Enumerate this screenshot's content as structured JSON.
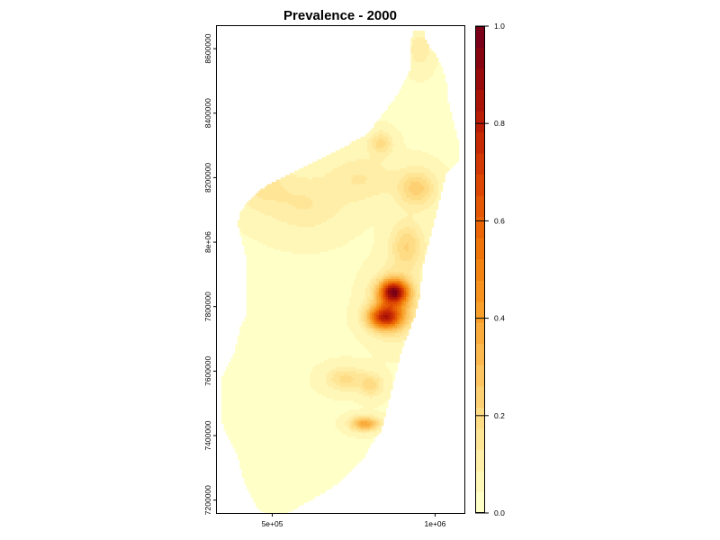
{
  "chart_data": {
    "type": "heatmap",
    "title": "Prevalence - 2000",
    "xlabel": "",
    "ylabel": "",
    "xlim": [
      330000,
      1090000
    ],
    "ylim": [
      7160000,
      8670000
    ],
    "x_ticks": [
      {
        "value": 500000,
        "label": "5e+05"
      },
      {
        "value": 1000000,
        "label": "1e+06"
      }
    ],
    "y_ticks": [
      {
        "value": 7200000,
        "label": "7200000"
      },
      {
        "value": 7400000,
        "label": "7400000"
      },
      {
        "value": 7600000,
        "label": "7600000"
      },
      {
        "value": 7800000,
        "label": "7800000"
      },
      {
        "value": 8000000,
        "label": "8e+06"
      },
      {
        "value": 8200000,
        "label": "8200000"
      },
      {
        "value": 8400000,
        "label": "8400000"
      },
      {
        "value": 8600000,
        "label": "8600000"
      }
    ],
    "colorbar": {
      "min": 0.0,
      "max": 1.0,
      "ticks": [
        {
          "value": 0.0,
          "label": "0.0"
        },
        {
          "value": 0.2,
          "label": "0.2"
        },
        {
          "value": 0.4,
          "label": "0.4"
        },
        {
          "value": 0.6,
          "label": "0.6"
        },
        {
          "value": 0.8,
          "label": "0.8"
        },
        {
          "value": 1.0,
          "label": "1.0"
        }
      ],
      "colors": [
        "#ffffc8",
        "#fff7b8",
        "#ffeea8",
        "#ffe596",
        "#fedc85",
        "#fdd073",
        "#fcc561",
        "#fbb84e",
        "#f9ac3c",
        "#f79f2a",
        "#f5911c",
        "#f28310",
        "#ee740a",
        "#e96506",
        "#e35604",
        "#db4703",
        "#d13803",
        "#c52a04",
        "#b81d05",
        "#a91306",
        "#980b0a",
        "#870510",
        "#7a0018"
      ],
      "position": "right"
    },
    "raster_values": {
      "background": 0.04,
      "island_outline_y_x_ranges": [
        {
          "y": 8660000,
          "x_min": 930000,
          "x_max": 960000
        },
        {
          "y": 8620000,
          "x_min": 920000,
          "x_max": 970000
        },
        {
          "y": 8580000,
          "x_min": 920000,
          "x_max": 1000000
        },
        {
          "y": 8540000,
          "x_min": 920000,
          "x_max": 1020000
        },
        {
          "y": 8500000,
          "x_min": 900000,
          "x_max": 1030000
        },
        {
          "y": 8460000,
          "x_min": 880000,
          "x_max": 1030000
        },
        {
          "y": 8420000,
          "x_min": 850000,
          "x_max": 1040000
        },
        {
          "y": 8380000,
          "x_min": 820000,
          "x_max": 1050000
        },
        {
          "y": 8340000,
          "x_min": 790000,
          "x_max": 1060000
        },
        {
          "y": 8300000,
          "x_min": 720000,
          "x_max": 1070000
        },
        {
          "y": 8260000,
          "x_min": 640000,
          "x_max": 1070000
        },
        {
          "y": 8220000,
          "x_min": 560000,
          "x_max": 1030000
        },
        {
          "y": 8180000,
          "x_min": 480000,
          "x_max": 1020000
        },
        {
          "y": 8140000,
          "x_min": 430000,
          "x_max": 1010000
        },
        {
          "y": 8100000,
          "x_min": 400000,
          "x_max": 1000000
        },
        {
          "y": 8060000,
          "x_min": 390000,
          "x_max": 990000
        },
        {
          "y": 8020000,
          "x_min": 400000,
          "x_max": 980000
        },
        {
          "y": 7980000,
          "x_min": 410000,
          "x_max": 970000
        },
        {
          "y": 7940000,
          "x_min": 420000,
          "x_max": 960000
        },
        {
          "y": 7900000,
          "x_min": 420000,
          "x_max": 955000
        },
        {
          "y": 7860000,
          "x_min": 420000,
          "x_max": 950000
        },
        {
          "y": 7820000,
          "x_min": 420000,
          "x_max": 945000
        },
        {
          "y": 7780000,
          "x_min": 420000,
          "x_max": 935000
        },
        {
          "y": 7740000,
          "x_min": 400000,
          "x_max": 920000
        },
        {
          "y": 7700000,
          "x_min": 390000,
          "x_max": 905000
        },
        {
          "y": 7660000,
          "x_min": 380000,
          "x_max": 890000
        },
        {
          "y": 7620000,
          "x_min": 360000,
          "x_max": 880000
        },
        {
          "y": 7580000,
          "x_min": 340000,
          "x_max": 870000
        },
        {
          "y": 7540000,
          "x_min": 340000,
          "x_max": 860000
        },
        {
          "y": 7500000,
          "x_min": 340000,
          "x_max": 850000
        },
        {
          "y": 7460000,
          "x_min": 340000,
          "x_max": 840000
        },
        {
          "y": 7420000,
          "x_min": 350000,
          "x_max": 830000
        },
        {
          "y": 7380000,
          "x_min": 370000,
          "x_max": 800000
        },
        {
          "y": 7340000,
          "x_min": 390000,
          "x_max": 780000
        },
        {
          "y": 7300000,
          "x_min": 400000,
          "x_max": 740000
        },
        {
          "y": 7260000,
          "x_min": 410000,
          "x_max": 700000
        },
        {
          "y": 7220000,
          "x_min": 430000,
          "x_max": 640000
        },
        {
          "y": 7180000,
          "x_min": 450000,
          "x_max": 570000
        },
        {
          "y": 7160000,
          "x_min": 480000,
          "x_max": 530000
        }
      ],
      "hotspots": [
        {
          "x": 870000,
          "y": 7850000,
          "sx": 30000,
          "sy": 25000,
          "value": 0.7
        },
        {
          "x": 840000,
          "y": 7770000,
          "sx": 35000,
          "sy": 25000,
          "value": 0.6
        },
        {
          "x": 870000,
          "y": 7810000,
          "sx": 45000,
          "sy": 60000,
          "value": 0.3
        },
        {
          "x": 940000,
          "y": 8170000,
          "sx": 40000,
          "sy": 40000,
          "value": 0.2
        },
        {
          "x": 910000,
          "y": 7990000,
          "sx": 35000,
          "sy": 50000,
          "value": 0.18
        },
        {
          "x": 830000,
          "y": 8310000,
          "sx": 25000,
          "sy": 25000,
          "value": 0.15
        },
        {
          "x": 780000,
          "y": 7440000,
          "sx": 30000,
          "sy": 15000,
          "value": 0.35
        },
        {
          "x": 720000,
          "y": 7580000,
          "sx": 40000,
          "sy": 25000,
          "value": 0.15
        },
        {
          "x": 800000,
          "y": 7560000,
          "sx": 25000,
          "sy": 25000,
          "value": 0.15
        },
        {
          "x": 460000,
          "y": 8190000,
          "sx": 60000,
          "sy": 60000,
          "value": 0.1
        },
        {
          "x": 600000,
          "y": 8120000,
          "sx": 80000,
          "sy": 60000,
          "value": 0.09
        },
        {
          "x": 770000,
          "y": 8200000,
          "sx": 70000,
          "sy": 50000,
          "value": 0.09
        },
        {
          "x": 950000,
          "y": 8600000,
          "sx": 25000,
          "sy": 40000,
          "value": 0.08
        }
      ]
    }
  }
}
